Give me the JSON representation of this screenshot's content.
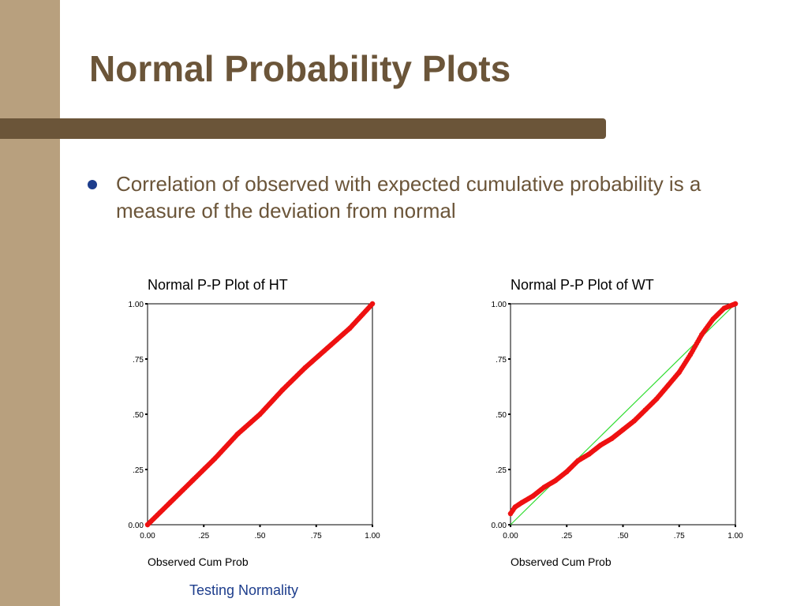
{
  "slide": {
    "title": "Normal Probability Plots",
    "bullet": "Correlation of observed with expected cumulative probability is a measure of the deviation from normal",
    "footer": "Testing Normality"
  },
  "colors": {
    "band": "#b8a07e",
    "title": "#6b5539",
    "bullet": "#1d3d8c",
    "points": "#ee1111",
    "reference_line": "#33dd33"
  },
  "chart_data": [
    {
      "type": "scatter",
      "title": "Normal P-P Plot of HT",
      "xlabel": "Observed Cum Prob",
      "ylabel": "",
      "xlim": [
        0,
        1
      ],
      "ylim": [
        0,
        1
      ],
      "xticks": [
        "0.00",
        ".25",
        ".50",
        ".75",
        "1.00"
      ],
      "yticks": [
        "0.00",
        ".25",
        ".50",
        ".75",
        "1.00"
      ],
      "grid": false,
      "reference_line": false,
      "series": [
        {
          "x": [
            0.0,
            0.1,
            0.2,
            0.3,
            0.4,
            0.5,
            0.6,
            0.7,
            0.8,
            0.9,
            1.0
          ],
          "y": [
            0.0,
            0.1,
            0.2,
            0.3,
            0.41,
            0.5,
            0.61,
            0.71,
            0.8,
            0.89,
            1.0
          ]
        }
      ]
    },
    {
      "type": "scatter",
      "title": "Normal P-P Plot of WT",
      "xlabel": "Observed Cum Prob",
      "ylabel": "",
      "xlim": [
        0,
        1
      ],
      "ylim": [
        0,
        1
      ],
      "xticks": [
        "0.00",
        ".25",
        ".50",
        ".75",
        "1.00"
      ],
      "yticks": [
        "0.00",
        ".25",
        ".50",
        ".75",
        "1.00"
      ],
      "grid": false,
      "reference_line": true,
      "series": [
        {
          "x": [
            0.0,
            0.02,
            0.05,
            0.1,
            0.15,
            0.2,
            0.25,
            0.3,
            0.35,
            0.4,
            0.45,
            0.5,
            0.55,
            0.6,
            0.65,
            0.7,
            0.75,
            0.8,
            0.85,
            0.9,
            0.95,
            1.0
          ],
          "y": [
            0.05,
            0.08,
            0.1,
            0.13,
            0.17,
            0.2,
            0.24,
            0.29,
            0.32,
            0.36,
            0.39,
            0.43,
            0.47,
            0.52,
            0.57,
            0.63,
            0.69,
            0.77,
            0.86,
            0.93,
            0.98,
            1.0
          ]
        }
      ]
    }
  ]
}
